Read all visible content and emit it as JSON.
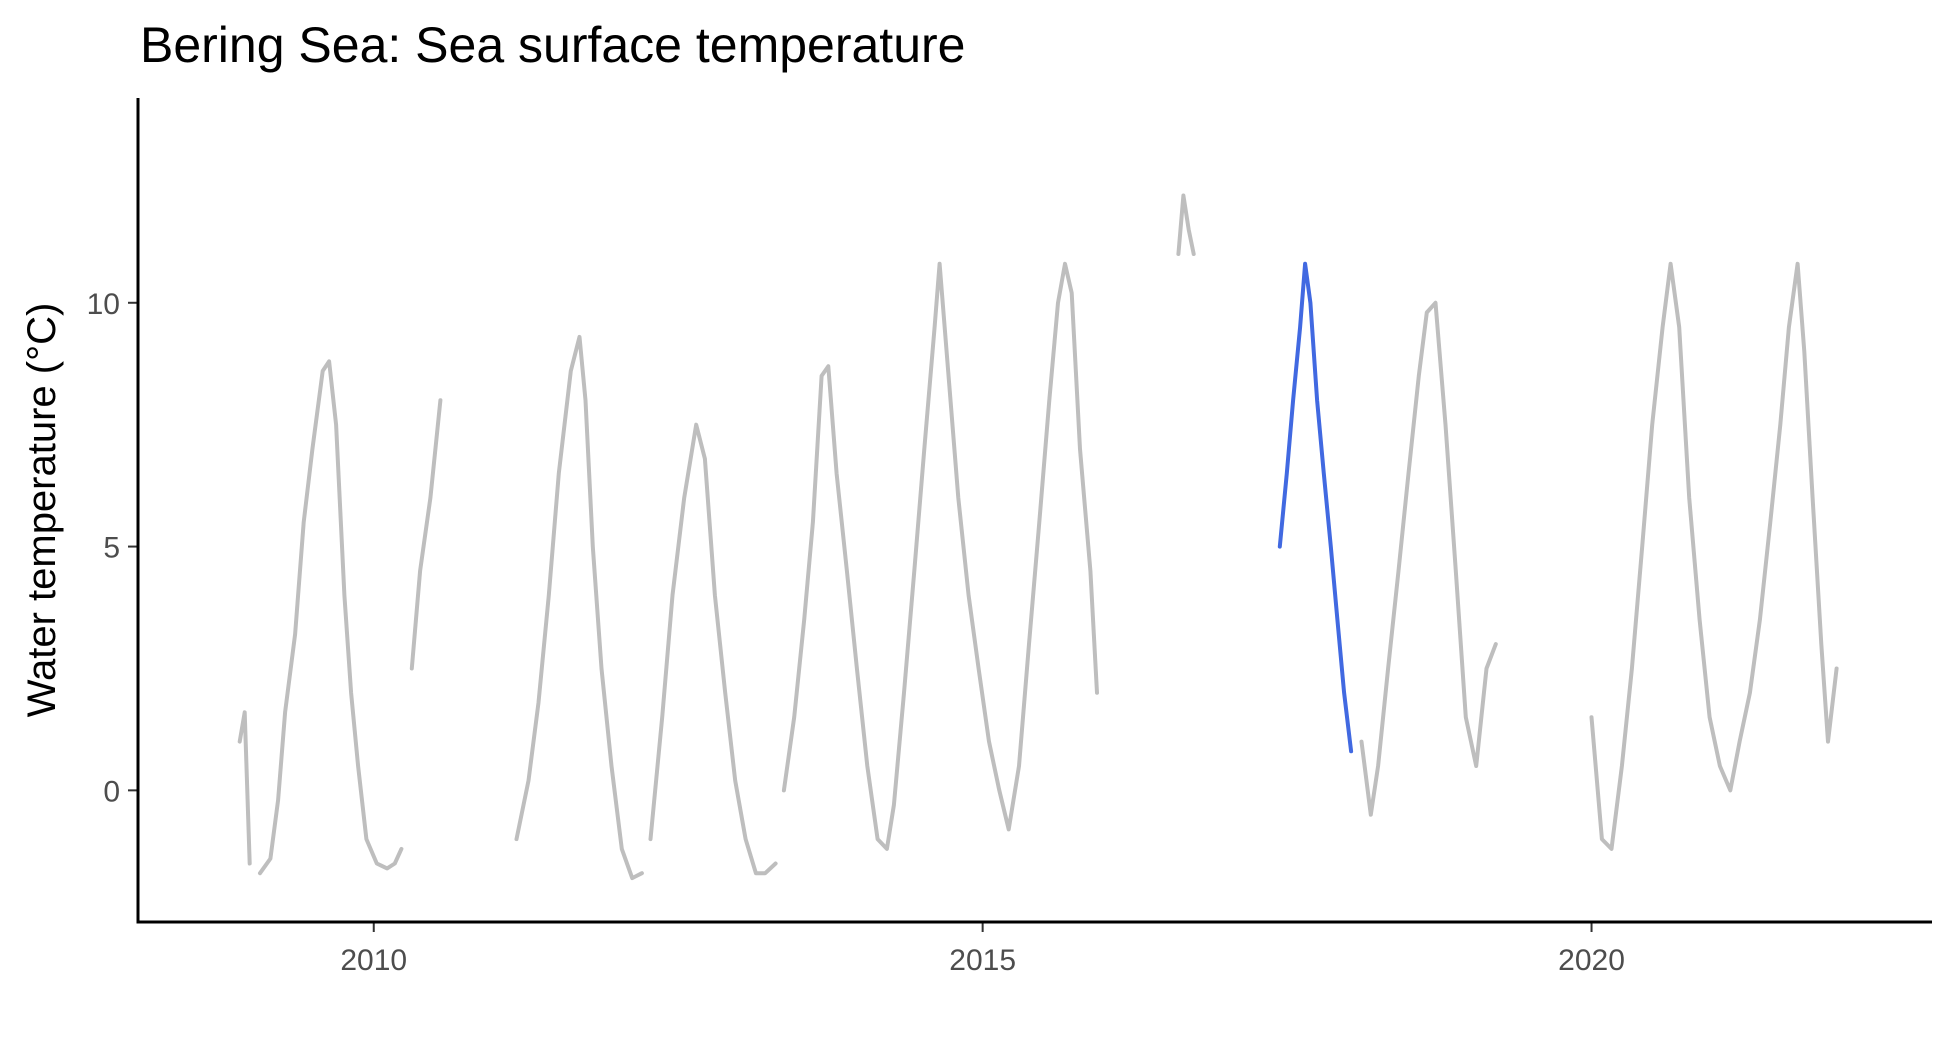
{
  "chart_data": {
    "type": "line",
    "title": "Bering Sea: Sea surface temperature",
    "xlabel": "",
    "ylabel": "Water temperature  (°C)",
    "x_ticks": [
      "2010",
      "2015",
      "2020"
    ],
    "y_ticks": [
      "0",
      "5",
      "10"
    ],
    "xlim": [
      "2008-01-25",
      "2022-10-18"
    ],
    "ylim": [
      -2.7,
      14.2
    ],
    "grid": false,
    "legend": "none",
    "series": [
      {
        "color": "#bebebe",
        "segments": [
          [
            [
              "2008-11-25",
              1.0
            ],
            [
              "2008-12-10",
              1.6
            ],
            [
              "2008-12-25",
              -1.5
            ]
          ],
          [
            [
              "2009-01-25",
              -1.7
            ],
            [
              "2009-02-25",
              -1.4
            ],
            [
              "2009-03-20",
              -0.2
            ],
            [
              "2009-04-10",
              1.6
            ],
            [
              "2009-05-10",
              3.2
            ],
            [
              "2009-06-05",
              5.5
            ],
            [
              "2009-07-01",
              7.0
            ],
            [
              "2009-08-01",
              8.6
            ],
            [
              "2009-08-20",
              8.8
            ],
            [
              "2009-09-10",
              7.5
            ],
            [
              "2009-10-05",
              4.0
            ],
            [
              "2009-10-25",
              2.0
            ],
            [
              "2009-11-15",
              0.5
            ],
            [
              "2009-12-10",
              -1.0
            ],
            [
              "2010-01-10",
              -1.5
            ],
            [
              "2010-02-10",
              -1.6
            ],
            [
              "2010-03-05",
              -1.5
            ],
            [
              "2010-03-25",
              -1.2
            ]
          ],
          [
            [
              "2010-04-25",
              2.5
            ],
            [
              "2010-05-20",
              4.5
            ],
            [
              "2010-06-20",
              6.0
            ],
            [
              "2010-07-20",
              8.0
            ]
          ],
          [
            [
              "2011-03-05",
              -1.0
            ],
            [
              "2011-04-10",
              0.2
            ],
            [
              "2011-05-10",
              1.8
            ],
            [
              "2011-06-10",
              4.0
            ],
            [
              "2011-07-10",
              6.5
            ],
            [
              "2011-08-15",
              8.6
            ],
            [
              "2011-09-10",
              9.3
            ],
            [
              "2011-09-28",
              8.0
            ],
            [
              "2011-10-20",
              5.0
            ],
            [
              "2011-11-15",
              2.5
            ],
            [
              "2011-12-15",
              0.5
            ],
            [
              "2012-01-15",
              -1.2
            ],
            [
              "2012-02-15",
              -1.8
            ],
            [
              "2012-03-15",
              -1.7
            ]
          ],
          [
            [
              "2012-04-10",
              -1.0
            ],
            [
              "2012-05-15",
              1.5
            ],
            [
              "2012-06-15",
              4.0
            ],
            [
              "2012-07-20",
              6.0
            ],
            [
              "2012-08-25",
              7.5
            ],
            [
              "2012-09-20",
              6.8
            ],
            [
              "2012-10-20",
              4.0
            ],
            [
              "2012-11-20",
              2.0
            ],
            [
              "2012-12-20",
              0.2
            ],
            [
              "2013-01-20",
              -1.0
            ],
            [
              "2013-02-20",
              -1.7
            ],
            [
              "2013-03-20",
              -1.7
            ],
            [
              "2013-04-20",
              -1.5
            ]
          ],
          [
            [
              "2013-05-15",
              0.0
            ],
            [
              "2013-06-15",
              1.5
            ],
            [
              "2013-07-15",
              3.5
            ],
            [
              "2013-08-10",
              5.5
            ],
            [
              "2013-09-05",
              8.5
            ],
            [
              "2013-09-25",
              8.7
            ],
            [
              "2013-10-20",
              6.5
            ],
            [
              "2013-11-20",
              4.5
            ],
            [
              "2013-12-20",
              2.5
            ],
            [
              "2014-01-20",
              0.5
            ],
            [
              "2014-02-20",
              -1.0
            ],
            [
              "2014-03-20",
              -1.2
            ],
            [
              "2014-04-10",
              -0.3
            ],
            [
              "2014-05-10",
              2.0
            ],
            [
              "2014-06-10",
              4.5
            ],
            [
              "2014-07-10",
              7.0
            ],
            [
              "2014-08-10",
              9.5
            ],
            [
              "2014-08-25",
              10.8
            ],
            [
              "2014-09-15",
              9.0
            ],
            [
              "2014-10-20",
              6.0
            ],
            [
              "2014-11-20",
              4.0
            ],
            [
              "2014-12-20",
              2.5
            ],
            [
              "2015-01-20",
              1.0
            ],
            [
              "2015-02-20",
              0.0
            ],
            [
              "2015-03-20",
              -0.8
            ],
            [
              "2015-04-20",
              0.5
            ],
            [
              "2015-05-20",
              3.0
            ],
            [
              "2015-06-20",
              5.5
            ],
            [
              "2015-07-20",
              8.0
            ],
            [
              "2015-08-15",
              10.0
            ],
            [
              "2015-09-05",
              10.8
            ],
            [
              "2015-09-25",
              10.2
            ],
            [
              "2015-10-20",
              7.0
            ],
            [
              "2015-11-20",
              4.5
            ],
            [
              "2015-12-10",
              2.0
            ]
          ],
          [
            [
              "2016-08-10",
              11.0
            ],
            [
              "2016-08-25",
              12.2
            ],
            [
              "2016-09-10",
              11.5
            ],
            [
              "2016-09-25",
              11.0
            ]
          ],
          [
            [
              "2018-02-10",
              1.0
            ],
            [
              "2018-03-10",
              -0.5
            ],
            [
              "2018-04-01",
              0.5
            ],
            [
              "2018-05-01",
              2.5
            ],
            [
              "2018-06-01",
              4.5
            ],
            [
              "2018-07-01",
              6.5
            ],
            [
              "2018-08-01",
              8.5
            ],
            [
              "2018-08-25",
              9.8
            ],
            [
              "2018-09-20",
              10.0
            ],
            [
              "2018-10-20",
              7.5
            ],
            [
              "2018-11-20",
              4.5
            ],
            [
              "2018-12-20",
              1.5
            ],
            [
              "2019-01-20",
              0.5
            ],
            [
              "2019-02-20",
              2.5
            ],
            [
              "2019-03-20",
              3.0
            ]
          ],
          [
            [
              "2020-01-01",
              1.5
            ],
            [
              "2020-02-01",
              -1.0
            ],
            [
              "2020-03-01",
              -1.2
            ],
            [
              "2020-04-01",
              0.5
            ],
            [
              "2020-05-01",
              2.5
            ],
            [
              "2020-06-01",
              5.0
            ],
            [
              "2020-07-01",
              7.5
            ],
            [
              "2020-08-01",
              9.5
            ],
            [
              "2020-08-25",
              10.8
            ],
            [
              "2020-09-20",
              9.5
            ],
            [
              "2020-10-20",
              6.0
            ],
            [
              "2020-11-20",
              3.5
            ],
            [
              "2020-12-20",
              1.5
            ],
            [
              "2021-01-20",
              0.5
            ],
            [
              "2021-02-20",
              0.0
            ],
            [
              "2021-03-20",
              1.0
            ],
            [
              "2021-04-20",
              2.0
            ],
            [
              "2021-05-20",
              3.5
            ],
            [
              "2021-06-20",
              5.5
            ],
            [
              "2021-07-20",
              7.5
            ],
            [
              "2021-08-15",
              9.5
            ],
            [
              "2021-09-10",
              10.8
            ],
            [
              "2021-09-30",
              9.0
            ],
            [
              "2021-10-25",
              6.0
            ],
            [
              "2021-11-20",
              3.0
            ],
            [
              "2021-12-10",
              1.0
            ],
            [
              "2022-01-05",
              2.5
            ]
          ]
        ]
      },
      {
        "color": "#4169e1",
        "segments": [
          [
            [
              "2017-06-10",
              5.0
            ],
            [
              "2017-07-01",
              6.5
            ],
            [
              "2017-07-20",
              8.0
            ],
            [
              "2017-08-10",
              9.5
            ],
            [
              "2017-08-25",
              10.8
            ],
            [
              "2017-09-10",
              10.0
            ],
            [
              "2017-09-30",
              8.0
            ],
            [
              "2017-10-20",
              6.5
            ],
            [
              "2017-11-10",
              5.0
            ],
            [
              "2017-11-30",
              3.5
            ],
            [
              "2017-12-20",
              2.0
            ],
            [
              "2018-01-10",
              0.8
            ]
          ]
        ]
      }
    ]
  }
}
